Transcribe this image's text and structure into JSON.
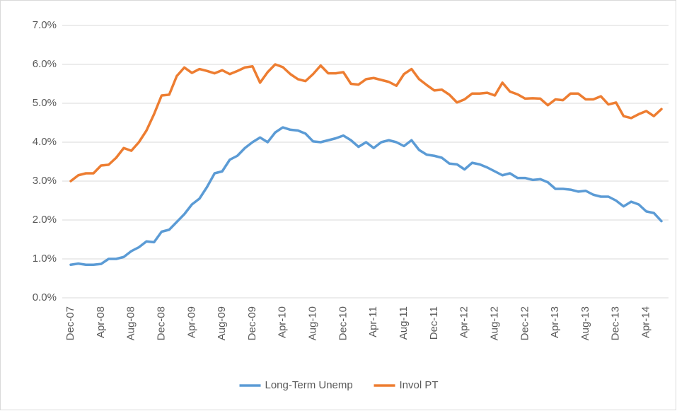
{
  "chart_data": {
    "type": "line",
    "categories": [
      "Dec-07",
      null,
      null,
      null,
      "Apr-08",
      null,
      null,
      null,
      "Aug-08",
      null,
      null,
      null,
      "Dec-08",
      null,
      null,
      null,
      "Apr-09",
      null,
      null,
      null,
      "Aug-09",
      null,
      null,
      null,
      "Dec-09",
      null,
      null,
      null,
      "Apr-10",
      null,
      null,
      null,
      "Aug-10",
      null,
      null,
      null,
      "Dec-10",
      null,
      null,
      null,
      "Apr-11",
      null,
      null,
      null,
      "Aug-11",
      null,
      null,
      null,
      "Dec-11",
      null,
      null,
      null,
      "Apr-12",
      null,
      null,
      null,
      "Aug-12",
      null,
      null,
      null,
      "Dec-12",
      null,
      null,
      null,
      "Apr-13",
      null,
      null,
      null,
      "Aug-13",
      null,
      null,
      null,
      "Dec-13",
      null,
      null,
      null,
      "Apr-14",
      null,
      null
    ],
    "series": [
      {
        "name": "Long-Term Unemp",
        "color": "#5b9bd5",
        "values": [
          0.85,
          0.88,
          0.85,
          0.85,
          0.87,
          1.0,
          1.0,
          1.05,
          1.2,
          1.3,
          1.45,
          1.43,
          1.7,
          1.75,
          1.95,
          2.15,
          2.4,
          2.55,
          2.85,
          3.2,
          3.25,
          3.55,
          3.65,
          3.85,
          4.0,
          4.12,
          4.0,
          4.25,
          4.38,
          4.32,
          4.3,
          4.22,
          4.02,
          4.0,
          4.05,
          4.1,
          4.17,
          4.05,
          3.88,
          4.0,
          3.85,
          4.0,
          4.05,
          4.0,
          3.9,
          4.05,
          3.8,
          3.68,
          3.65,
          3.6,
          3.45,
          3.43,
          3.3,
          3.47,
          3.43,
          3.35,
          3.25,
          3.15,
          3.2,
          3.08,
          3.08,
          3.03,
          3.05,
          2.97,
          2.8,
          2.8,
          2.78,
          2.73,
          2.75,
          2.65,
          2.6,
          2.6,
          2.5,
          2.35,
          2.47,
          2.4,
          2.22,
          2.18,
          1.97
        ]
      },
      {
        "name": "Invol PT",
        "color": "#ed7d31",
        "values": [
          3.0,
          3.15,
          3.2,
          3.2,
          3.4,
          3.42,
          3.6,
          3.85,
          3.78,
          4.0,
          4.3,
          4.72,
          5.2,
          5.22,
          5.7,
          5.92,
          5.78,
          5.88,
          5.83,
          5.77,
          5.85,
          5.75,
          5.83,
          5.92,
          5.95,
          5.53,
          5.8,
          6.0,
          5.93,
          5.75,
          5.62,
          5.57,
          5.75,
          5.97,
          5.77,
          5.77,
          5.8,
          5.5,
          5.48,
          5.62,
          5.65,
          5.6,
          5.55,
          5.45,
          5.75,
          5.88,
          5.62,
          5.47,
          5.33,
          5.35,
          5.22,
          5.02,
          5.1,
          5.25,
          5.25,
          5.27,
          5.2,
          5.53,
          5.3,
          5.23,
          5.12,
          5.13,
          5.12,
          4.95,
          5.1,
          5.08,
          5.25,
          5.25,
          5.1,
          5.1,
          5.18,
          4.97,
          5.02,
          4.67,
          4.62,
          4.72,
          4.8,
          4.67,
          4.85
        ]
      }
    ],
    "ylim": [
      0,
      7
    ],
    "yticks": [
      {
        "value": 0,
        "label": "0.0%"
      },
      {
        "value": 1,
        "label": "1.0%"
      },
      {
        "value": 2,
        "label": "2.0%"
      },
      {
        "value": 3,
        "label": "3.0%"
      },
      {
        "value": 4,
        "label": "4.0%"
      },
      {
        "value": 5,
        "label": "5.0%"
      },
      {
        "value": 6,
        "label": "6.0%"
      },
      {
        "value": 7,
        "label": "7.0%"
      }
    ],
    "grid": true,
    "legend": "bottom"
  }
}
